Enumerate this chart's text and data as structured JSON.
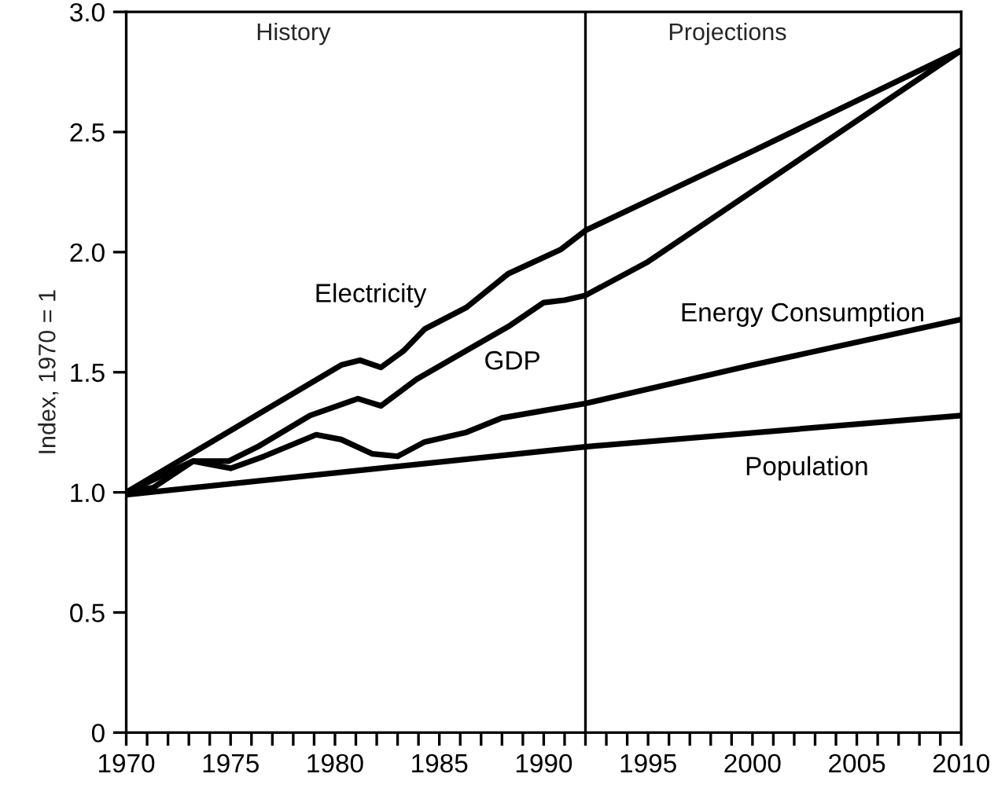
{
  "chart_data": {
    "type": "line",
    "ylabel": "Index, 1970 = 1",
    "annotations": [
      "History",
      "Projections"
    ],
    "series": [
      {
        "name": "Electricity",
        "color": "#000000",
        "x": [
          1970,
          1980.3,
          1981.2,
          1982.2,
          1983.3,
          1984.3,
          1986.3,
          1988.3,
          1990.8,
          1992,
          2000,
          2010
        ],
        "values": [
          1.0,
          1.53,
          1.55,
          1.52,
          1.59,
          1.68,
          1.77,
          1.91,
          2.01,
          2.09,
          2.42,
          2.84
        ]
      },
      {
        "name": "GDP",
        "color": "#000000",
        "x": [
          1970,
          1971.3,
          1973.2,
          1974.9,
          1976.3,
          1978.8,
          1981.1,
          1982.2,
          1983.9,
          1986.3,
          1988.3,
          1990,
          1991,
          1992,
          1995,
          2010
        ],
        "values": [
          1.0,
          1.02,
          1.13,
          1.13,
          1.19,
          1.32,
          1.39,
          1.36,
          1.47,
          1.59,
          1.69,
          1.79,
          1.8,
          1.82,
          1.96,
          2.84
        ]
      },
      {
        "name": "Energy Consumption",
        "color": "#000000",
        "x": [
          1970,
          1973.2,
          1975,
          1976.6,
          1979.1,
          1980.3,
          1981.8,
          1983,
          1984.3,
          1986.3,
          1988,
          1990,
          1992,
          2000,
          2010
        ],
        "values": [
          1.0,
          1.13,
          1.1,
          1.15,
          1.24,
          1.22,
          1.16,
          1.15,
          1.21,
          1.25,
          1.31,
          1.34,
          1.37,
          1.53,
          1.72
        ]
      },
      {
        "name": "Population",
        "color": "#000000",
        "x": [
          1970,
          1992,
          2010
        ],
        "values": [
          0.99,
          1.19,
          1.32
        ]
      }
    ],
    "xlim": [
      1970,
      2010
    ],
    "xticks": [
      1970,
      {
        "value": 1971,
        "label": null
      },
      {
        "value": 1972,
        "label": null
      },
      {
        "value": 1973,
        "label": null
      },
      {
        "value": 1974,
        "label": null
      },
      1975,
      {
        "value": 1976,
        "label": null
      },
      {
        "value": 1977,
        "label": null
      },
      {
        "value": 1978,
        "label": null
      },
      {
        "value": 1979,
        "label": null
      },
      1980,
      {
        "value": 1981,
        "label": null
      },
      {
        "value": 1982,
        "label": null
      },
      {
        "value": 1983,
        "label": null
      },
      {
        "value": 1984,
        "label": null
      },
      1985,
      {
        "value": 1986,
        "label": null
      },
      {
        "value": 1987,
        "label": null
      },
      {
        "value": 1988,
        "label": null
      },
      {
        "value": 1989,
        "label": null
      },
      1990,
      {
        "value": 1991,
        "label": null
      },
      {
        "value": 1992,
        "label": null
      },
      {
        "value": 1993,
        "label": null
      },
      {
        "value": 1994,
        "label": null
      },
      1995,
      {
        "value": 1996,
        "label": null
      },
      {
        "value": 1997,
        "label": null
      },
      {
        "value": 1998,
        "label": null
      },
      {
        "value": 1999,
        "label": null
      },
      2000,
      {
        "value": 2001,
        "label": null
      },
      {
        "value": 2002,
        "label": null
      },
      {
        "value": 2003,
        "label": null
      },
      {
        "value": 2004,
        "label": null
      },
      2005,
      {
        "value": 2006,
        "label": null
      },
      {
        "value": 2007,
        "label": null
      },
      {
        "value": 2008,
        "label": null
      },
      {
        "value": 2009,
        "label": null
      },
      2010
    ],
    "ylim": [
      0,
      3.0
    ],
    "yticks": [
      0,
      {
        "value": 0.5,
        "label": "0.5"
      },
      {
        "value": 1.0,
        "label": "1.0"
      },
      {
        "value": 1.5,
        "label": "1.5"
      },
      {
        "value": 2.0,
        "label": "2.0"
      },
      {
        "value": 2.5,
        "label": "2.5"
      },
      {
        "value": 3.0,
        "label": "3.0"
      }
    ],
    "ref_lines": [
      {
        "axis": "x",
        "value": 1992,
        "label": null,
        "color": "#000000"
      }
    ],
    "grid": false,
    "legend": false,
    "marker": "none",
    "line_style": "solid"
  }
}
